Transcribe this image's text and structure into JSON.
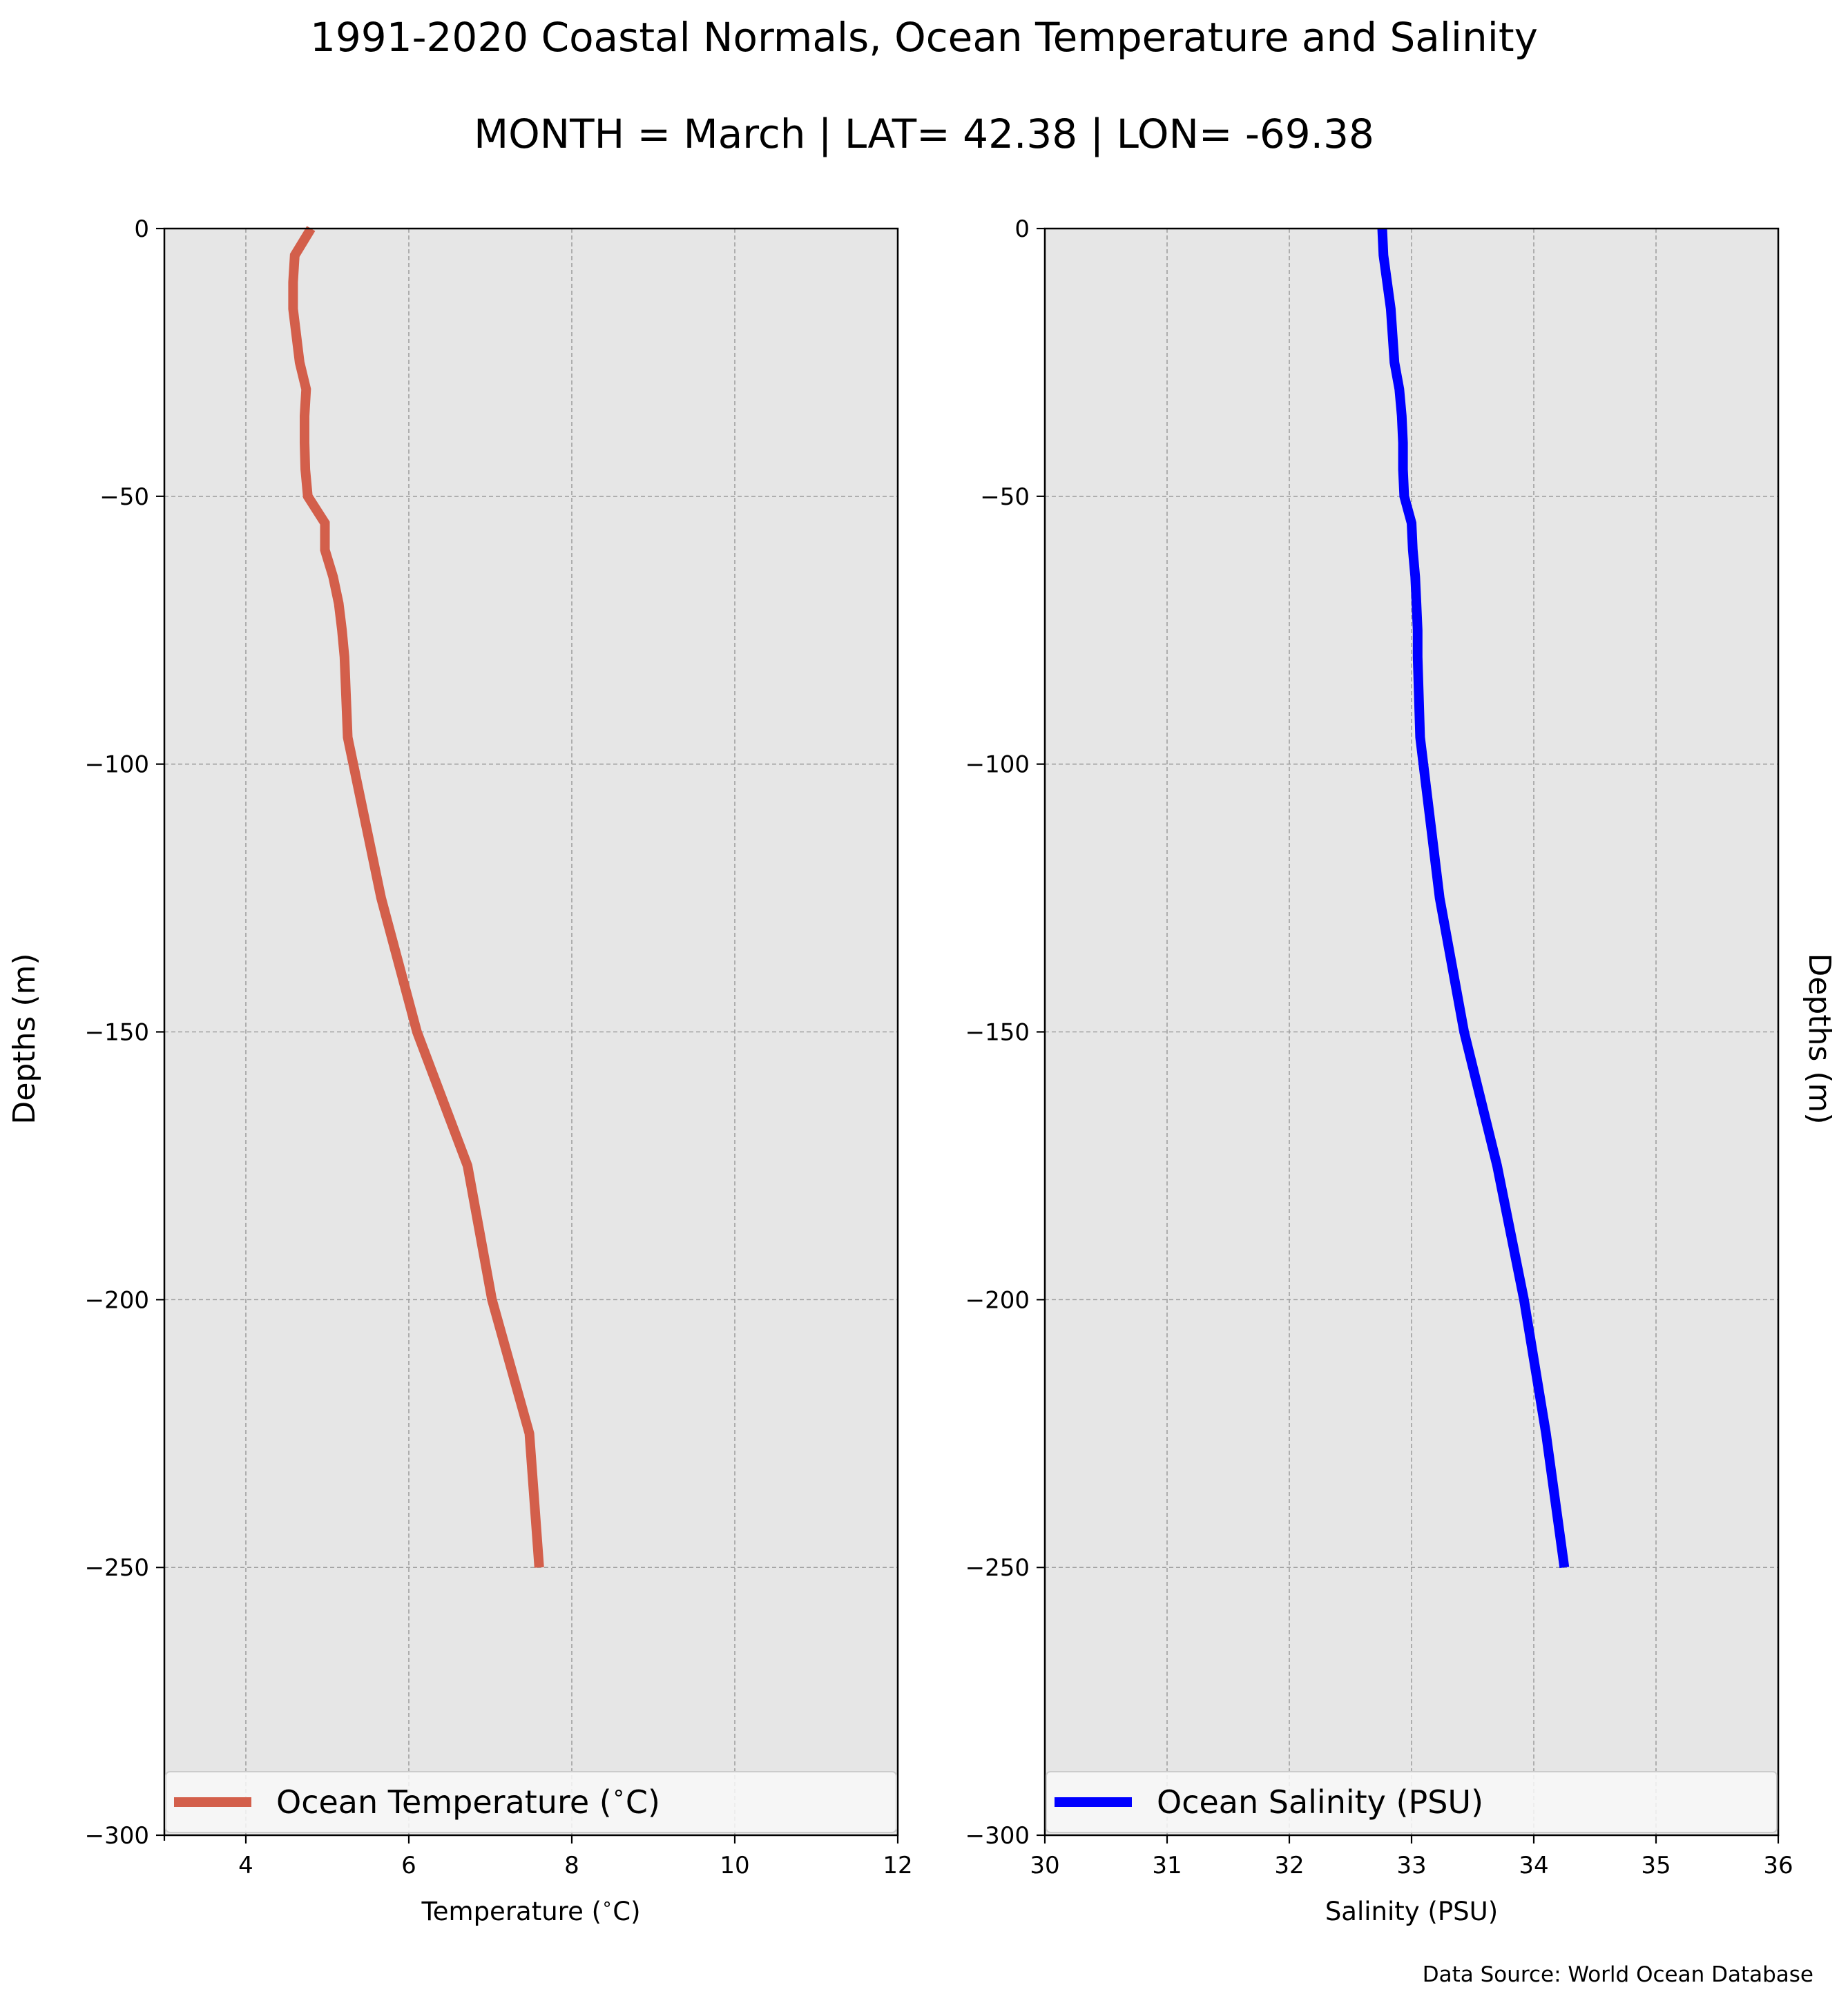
{
  "figure": {
    "title_line1": "1991-2020 Coastal Normals, Ocean Temperature and Salinity",
    "title_line2": "MONTH = March | LAT= 42.38 | LON= -69.38",
    "source_note": "Data Source: World Ocean Database"
  },
  "colors": {
    "plot_bg": "#e6e6e6",
    "grid": "#a0a0a0",
    "temperature_line": "#d35f4b",
    "salinity_line": "#0000ff"
  },
  "chart_data": [
    {
      "type": "line",
      "title": "",
      "xlabel": "Temperature ($^\\circ$C)",
      "ylabel": "Depths (m)",
      "xlim": [
        3,
        12
      ],
      "ylim": [
        -300,
        0
      ],
      "xticks": [
        4,
        6,
        8,
        10,
        12
      ],
      "yticks": [
        0,
        -50,
        -100,
        -150,
        -200,
        -250,
        -300
      ],
      "xtick_labels": [
        "4",
        "6",
        "8",
        "10",
        "12"
      ],
      "ytick_labels": [
        "0",
        "−50",
        "−100",
        "−150",
        "−200",
        "−250",
        "−300"
      ],
      "grid": true,
      "legend_position": "bottom",
      "ylabel_side": "left",
      "series": [
        {
          "name": "Ocean Temperature ($^\\circ$C)",
          "color": "#d35f4b",
          "x": [
            4.8,
            4.6,
            4.58,
            4.58,
            4.66,
            4.74,
            4.72,
            4.72,
            4.73,
            4.76,
            4.97,
            4.97,
            5.07,
            5.14,
            5.18,
            5.21,
            5.25,
            5.66,
            6.1,
            6.72,
            7.02,
            7.48,
            7.6
          ],
          "y": [
            0,
            -5,
            -10,
            -15,
            -25,
            -30,
            -35,
            -40,
            -45,
            -50,
            -55,
            -60,
            -65,
            -70,
            -75,
            -80,
            -95,
            -125,
            -150,
            -175,
            -200,
            -225,
            -250
          ]
        }
      ]
    },
    {
      "type": "line",
      "title": "",
      "xlabel": "Salinity (PSU)",
      "ylabel": "Depths (m)",
      "xlim": [
        30,
        36
      ],
      "ylim": [
        -300,
        0
      ],
      "xticks": [
        30,
        31,
        32,
        33,
        34,
        35,
        36
      ],
      "yticks": [
        0,
        -50,
        -100,
        -150,
        -200,
        -250,
        -300
      ],
      "xtick_labels": [
        "30",
        "31",
        "32",
        "33",
        "34",
        "35",
        "36"
      ],
      "ytick_labels": [
        "0",
        "−50",
        "−100",
        "−150",
        "−200",
        "−250",
        "−300"
      ],
      "grid": true,
      "legend_position": "bottom",
      "ylabel_side": "right",
      "series": [
        {
          "name": "Ocean Salinity (PSU)",
          "color": "#0000ff",
          "x": [
            32.76,
            32.77,
            32.8,
            32.83,
            32.86,
            32.9,
            32.92,
            32.93,
            32.93,
            32.94,
            33.0,
            33.01,
            33.03,
            33.04,
            33.05,
            33.05,
            33.07,
            33.23,
            33.43,
            33.7,
            33.92,
            34.1,
            34.25
          ],
          "y": [
            0,
            -5,
            -10,
            -15,
            -25,
            -30,
            -35,
            -40,
            -45,
            -50,
            -55,
            -60,
            -65,
            -70,
            -75,
            -80,
            -95,
            -125,
            -150,
            -175,
            -200,
            -225,
            -250
          ]
        }
      ]
    }
  ]
}
